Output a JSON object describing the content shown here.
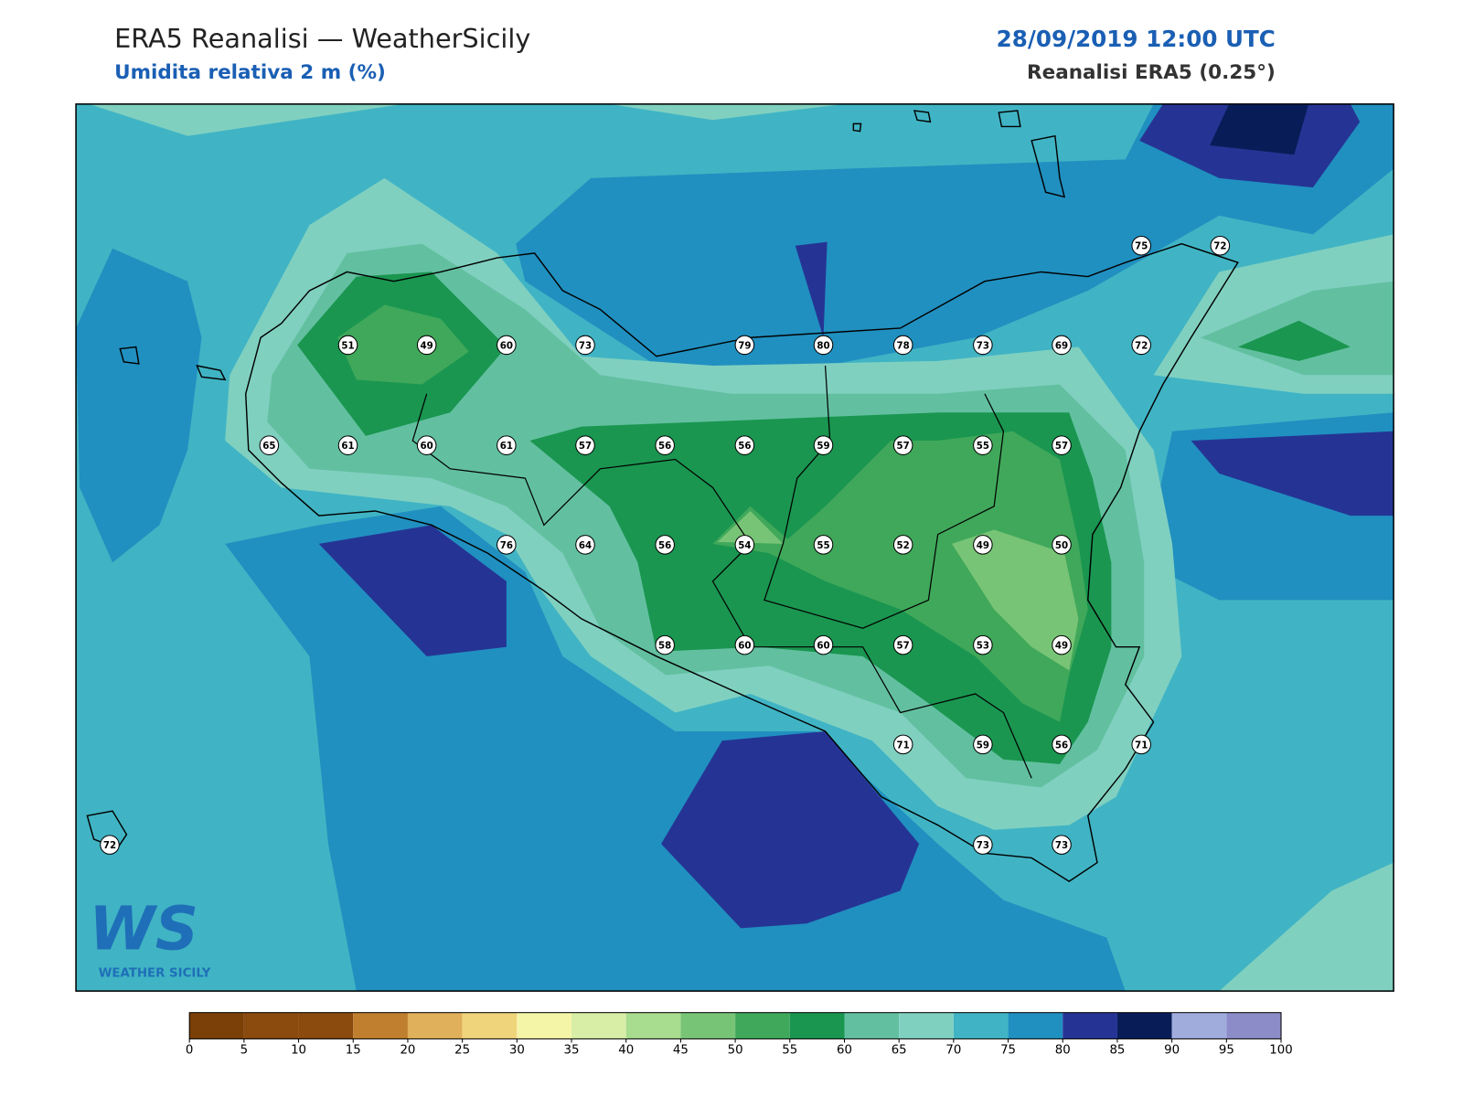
{
  "header": {
    "title": "ERA5 Reanalisi — WeatherSicily",
    "subtitle": "Umidita relativa 2 m (%)",
    "datetime": "28/09/2019 12:00 UTC",
    "source": "Reanalisi ERA5 (0.25°)"
  },
  "stations": {
    "values": [
      75,
      72,
      51,
      49,
      60,
      73,
      79,
      80,
      78,
      73,
      69,
      72,
      65,
      61,
      60,
      61,
      57,
      56,
      56,
      59,
      57,
      55,
      57,
      76,
      64,
      56,
      54,
      55,
      52,
      49,
      50,
      58,
      60,
      60,
      57,
      53,
      49,
      71,
      59,
      56,
      71,
      72,
      73,
      73
    ]
  },
  "colorbar": {
    "ticks": [
      0,
      5,
      10,
      15,
      20,
      25,
      30,
      35,
      40,
      45,
      50,
      55,
      60,
      65,
      70,
      75,
      80,
      85,
      90,
      95,
      100
    ],
    "colors": [
      "#7a4008",
      "#8b4a0e",
      "#8b4a0e",
      "#c07f2e",
      "#e0b05a",
      "#f0d47c",
      "#f5f5a8",
      "#d8eea6",
      "#a8dc8e",
      "#78c476",
      "#40a85a",
      "#1a9650",
      "#62c0a0",
      "#80d0c0",
      "#40b4c4",
      "#2090c0",
      "#253494",
      "#081d58",
      "#a0acdc",
      "#8c8cc8"
    ]
  },
  "logo": {
    "mark": "WS",
    "name": "WEATHER SICILY"
  }
}
